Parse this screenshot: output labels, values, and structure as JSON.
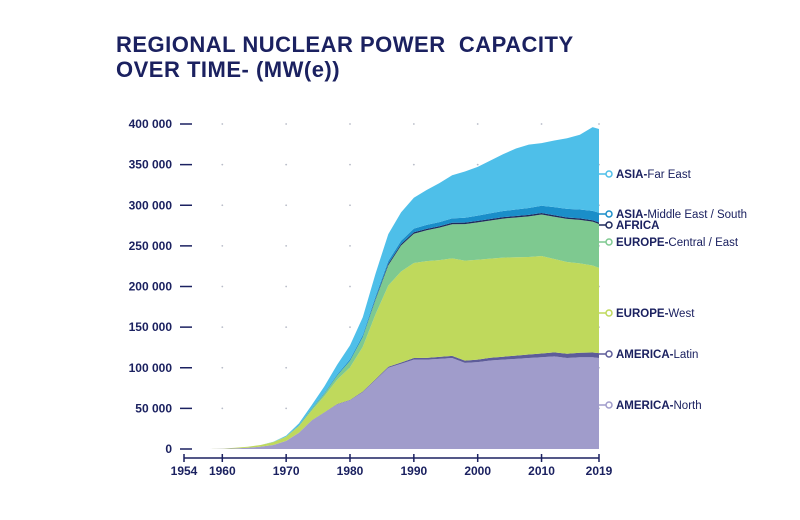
{
  "title_lines": [
    "REGIONAL NUCLEAR POWER  CAPACITY",
    "OVER TIME- (MW(e))"
  ],
  "chart_data": {
    "type": "area",
    "stacked": true,
    "title": "REGIONAL NUCLEAR POWER  CAPACITY OVER TIME- (MW(e))",
    "x_range": [
      1954,
      2019
    ],
    "ylim": [
      0,
      400000
    ],
    "x_ticks": [
      1954,
      1960,
      1970,
      1980,
      1990,
      2000,
      2010,
      2019
    ],
    "x_tick_labels": [
      "1954",
      "1960",
      "1970",
      "1980",
      "1990",
      "2000",
      "2010",
      "2019"
    ],
    "y_ticks": [
      0,
      50000,
      100000,
      150000,
      200000,
      250000,
      300000,
      350000,
      400000
    ],
    "y_tick_labels": [
      "0",
      "50 000",
      "100 000",
      "150 000",
      "200 000",
      "250 000",
      "300 000",
      "350 000",
      "400 000"
    ],
    "grid": "dotted",
    "legend_placement": "right, labels at end of series",
    "x": [
      1954,
      1958,
      1960,
      1962,
      1964,
      1966,
      1968,
      1970,
      1972,
      1974,
      1976,
      1978,
      1980,
      1982,
      1984,
      1986,
      1988,
      1990,
      1992,
      1994,
      1996,
      1998,
      2000,
      2002,
      2004,
      2006,
      2008,
      2010,
      2012,
      2014,
      2016,
      2018,
      2019
    ],
    "series": [
      {
        "name": "AMERICA-North",
        "color": "#a09ccb",
        "values": [
          0,
          0,
          300,
          800,
          1500,
          3000,
          5000,
          10000,
          20000,
          35000,
          45000,
          55000,
          60000,
          70000,
          85000,
          100000,
          105000,
          110000,
          110000,
          111000,
          112000,
          106000,
          107000,
          109000,
          110000,
          111000,
          112000,
          113000,
          114000,
          112000,
          113000,
          113000,
          112000
        ]
      },
      {
        "name": "AMERICA-Latin",
        "color": "#5d5c99",
        "values": [
          0,
          0,
          0,
          0,
          0,
          0,
          0,
          0,
          0,
          200,
          300,
          400,
          500,
          700,
          900,
          1200,
          1500,
          2000,
          2200,
          2400,
          2600,
          2800,
          3000,
          3300,
          3600,
          4000,
          4300,
          4600,
          4900,
          5200,
          5500,
          5800,
          6000
        ]
      },
      {
        "name": "EUROPE-West",
        "color": "#bfd95c",
        "values": [
          0,
          0,
          200,
          700,
          1200,
          2000,
          3500,
          5000,
          8000,
          12000,
          20000,
          30000,
          40000,
          55000,
          80000,
          100000,
          112000,
          117000,
          119000,
          119000,
          120000,
          123000,
          123000,
          122000,
          122000,
          121000,
          120000,
          120000,
          115000,
          113000,
          110000,
          107000,
          105000
        ]
      },
      {
        "name": "EUROPE-Central / East",
        "color": "#7ec990",
        "values": [
          0,
          0,
          0,
          0,
          0,
          0,
          200,
          500,
          1000,
          2000,
          3000,
          5000,
          8000,
          12000,
          18000,
          25000,
          32000,
          36000,
          38000,
          40000,
          42000,
          45000,
          46000,
          47000,
          48000,
          49000,
          50000,
          51000,
          52000,
          53000,
          53500,
          54000,
          54000
        ]
      },
      {
        "name": "AFRICA",
        "color": "#1f2a5c",
        "values": [
          0,
          0,
          0,
          0,
          0,
          0,
          0,
          0,
          0,
          0,
          0,
          0,
          0,
          0,
          1000,
          1800,
          1800,
          1800,
          1800,
          1800,
          1800,
          1800,
          1800,
          1800,
          1800,
          1800,
          1800,
          1800,
          1800,
          1800,
          1800,
          1800,
          1800
        ]
      },
      {
        "name": "ASIA-Middle East / South",
        "color": "#1a8ec9",
        "values": [
          0,
          0,
          0,
          0,
          0,
          0,
          0,
          0,
          500,
          800,
          1000,
          1500,
          2000,
          2500,
          3000,
          3500,
          4000,
          4500,
          4800,
          5000,
          5500,
          6000,
          6500,
          7000,
          7500,
          8000,
          8500,
          9000,
          10000,
          10500,
          11000,
          11500,
          12000
        ]
      },
      {
        "name": "ASIA-Far East",
        "color": "#4ebfe9",
        "values": [
          0,
          0,
          0,
          0,
          0,
          0,
          300,
          1000,
          2000,
          4000,
          8000,
          12000,
          17000,
          22000,
          28000,
          33000,
          35000,
          38000,
          43000,
          48000,
          53000,
          57000,
          60000,
          65000,
          70000,
          75000,
          78000,
          77000,
          82000,
          87000,
          92000,
          103000,
          103000
        ]
      }
    ],
    "labels": [
      {
        "bold": "ASIA-",
        "rest": "Far East",
        "color": "#4ebfe9"
      },
      {
        "bold": "ASIA-",
        "rest": "Middle East / South",
        "color": "#1a8ec9"
      },
      {
        "bold": "AFRICA",
        "rest": "",
        "color": "#1f2a5c"
      },
      {
        "bold": "EUROPE-",
        "rest": "Central / East",
        "color": "#7ec990"
      },
      {
        "bold": "EUROPE-",
        "rest": "West",
        "color": "#bfd95c"
      },
      {
        "bold": "AMERICA-",
        "rest": "Latin",
        "color": "#5d5c99"
      },
      {
        "bold": "AMERICA-",
        "rest": "North",
        "color": "#a09ccb"
      }
    ]
  }
}
